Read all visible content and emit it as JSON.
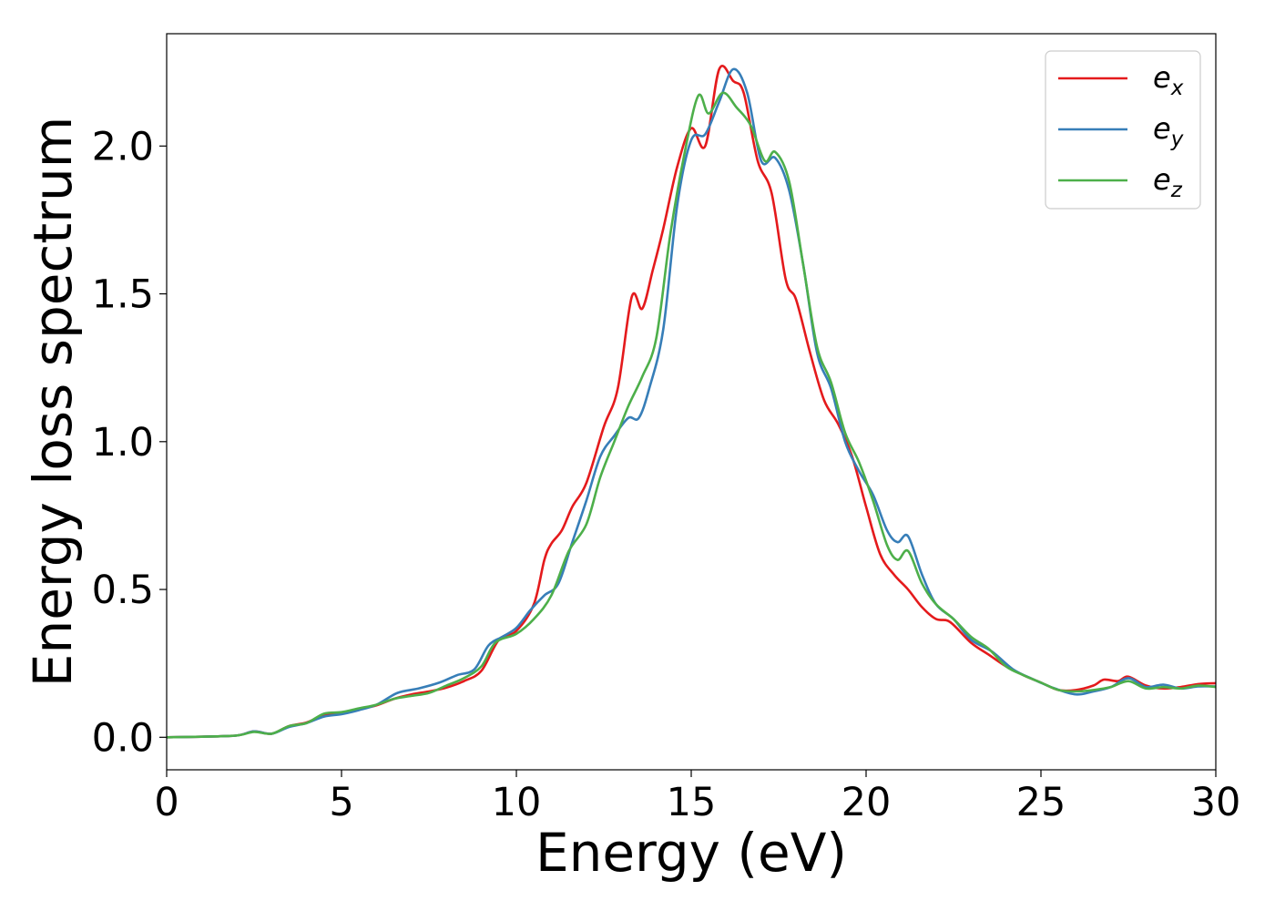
{
  "chart_data": {
    "type": "line",
    "xlabel": "Energy (eV)",
    "ylabel": "Energy loss spectrum",
    "xlim": [
      0,
      30
    ],
    "ylim": [
      -0.11,
      2.38
    ],
    "grid": false,
    "legend_position": "top-right",
    "x_ticks": [
      "0",
      "5",
      "10",
      "15",
      "20",
      "25",
      "30"
    ],
    "y_ticks": [
      "0.0",
      "0.5",
      "1.0",
      "1.5",
      "2.0"
    ],
    "series": [
      {
        "name": "e",
        "subscript": "x",
        "color": "#e41a1c",
        "points": [
          [
            0,
            0
          ],
          [
            1,
            0.002
          ],
          [
            2,
            0.006
          ],
          [
            2.5,
            0.02
          ],
          [
            3,
            0.012
          ],
          [
            3.5,
            0.038
          ],
          [
            4,
            0.05
          ],
          [
            4.5,
            0.075
          ],
          [
            5,
            0.083
          ],
          [
            5.5,
            0.095
          ],
          [
            6,
            0.108
          ],
          [
            6.5,
            0.13
          ],
          [
            7,
            0.145
          ],
          [
            7.5,
            0.155
          ],
          [
            8,
            0.168
          ],
          [
            8.5,
            0.19
          ],
          [
            9,
            0.225
          ],
          [
            9.5,
            0.33
          ],
          [
            10,
            0.36
          ],
          [
            10.5,
            0.45
          ],
          [
            10.8,
            0.6
          ],
          [
            11,
            0.655
          ],
          [
            11.3,
            0.7
          ],
          [
            11.6,
            0.78
          ],
          [
            12,
            0.86
          ],
          [
            12.5,
            1.05
          ],
          [
            12.9,
            1.18
          ],
          [
            13.3,
            1.49
          ],
          [
            13.6,
            1.45
          ],
          [
            13.9,
            1.58
          ],
          [
            14.2,
            1.72
          ],
          [
            14.6,
            1.93
          ],
          [
            15,
            2.06
          ],
          [
            15.4,
            2.0
          ],
          [
            15.8,
            2.26
          ],
          [
            16.2,
            2.22
          ],
          [
            16.5,
            2.18
          ],
          [
            16.9,
            1.95
          ],
          [
            17.3,
            1.84
          ],
          [
            17.7,
            1.55
          ],
          [
            18,
            1.48
          ],
          [
            18.4,
            1.3
          ],
          [
            18.8,
            1.14
          ],
          [
            19.2,
            1.06
          ],
          [
            19.6,
            0.95
          ],
          [
            20,
            0.78
          ],
          [
            20.4,
            0.62
          ],
          [
            20.8,
            0.55
          ],
          [
            21.2,
            0.5
          ],
          [
            21.6,
            0.44
          ],
          [
            22,
            0.4
          ],
          [
            22.4,
            0.39
          ],
          [
            23,
            0.32
          ],
          [
            23.5,
            0.28
          ],
          [
            24,
            0.24
          ],
          [
            24.5,
            0.21
          ],
          [
            25,
            0.185
          ],
          [
            25.5,
            0.16
          ],
          [
            26,
            0.16
          ],
          [
            26.5,
            0.175
          ],
          [
            26.8,
            0.195
          ],
          [
            27.2,
            0.19
          ],
          [
            27.5,
            0.205
          ],
          [
            28,
            0.175
          ],
          [
            28.5,
            0.165
          ],
          [
            29,
            0.17
          ],
          [
            29.5,
            0.18
          ],
          [
            30,
            0.183
          ]
        ]
      },
      {
        "name": "e",
        "subscript": "y",
        "color": "#377eb8",
        "points": [
          [
            0,
            0
          ],
          [
            1,
            0.002
          ],
          [
            2,
            0.006
          ],
          [
            2.5,
            0.02
          ],
          [
            3,
            0.012
          ],
          [
            3.5,
            0.035
          ],
          [
            4,
            0.048
          ],
          [
            4.5,
            0.07
          ],
          [
            5,
            0.078
          ],
          [
            5.5,
            0.092
          ],
          [
            6,
            0.11
          ],
          [
            6.6,
            0.15
          ],
          [
            7.2,
            0.165
          ],
          [
            7.8,
            0.185
          ],
          [
            8.3,
            0.21
          ],
          [
            8.8,
            0.23
          ],
          [
            9.2,
            0.31
          ],
          [
            9.6,
            0.34
          ],
          [
            10,
            0.37
          ],
          [
            10.4,
            0.43
          ],
          [
            10.8,
            0.48
          ],
          [
            11.2,
            0.52
          ],
          [
            11.6,
            0.66
          ],
          [
            12,
            0.8
          ],
          [
            12.4,
            0.95
          ],
          [
            12.8,
            1.02
          ],
          [
            13.2,
            1.08
          ],
          [
            13.5,
            1.08
          ],
          [
            13.8,
            1.18
          ],
          [
            14.2,
            1.38
          ],
          [
            14.6,
            1.8
          ],
          [
            15,
            2.02
          ],
          [
            15.4,
            2.04
          ],
          [
            15.8,
            2.15
          ],
          [
            16.2,
            2.26
          ],
          [
            16.6,
            2.18
          ],
          [
            17,
            1.95
          ],
          [
            17.4,
            1.96
          ],
          [
            17.8,
            1.85
          ],
          [
            18.2,
            1.6
          ],
          [
            18.6,
            1.3
          ],
          [
            19,
            1.18
          ],
          [
            19.4,
            1.0
          ],
          [
            19.8,
            0.9
          ],
          [
            20.2,
            0.82
          ],
          [
            20.6,
            0.7
          ],
          [
            20.9,
            0.66
          ],
          [
            21.2,
            0.68
          ],
          [
            21.6,
            0.55
          ],
          [
            22,
            0.45
          ],
          [
            22.5,
            0.4
          ],
          [
            23,
            0.33
          ],
          [
            23.6,
            0.29
          ],
          [
            24.2,
            0.23
          ],
          [
            24.8,
            0.195
          ],
          [
            25.4,
            0.165
          ],
          [
            26,
            0.145
          ],
          [
            26.5,
            0.155
          ],
          [
            27,
            0.17
          ],
          [
            27.5,
            0.2
          ],
          [
            28,
            0.17
          ],
          [
            28.5,
            0.178
          ],
          [
            29,
            0.165
          ],
          [
            29.5,
            0.172
          ],
          [
            30,
            0.172
          ]
        ]
      },
      {
        "name": "e",
        "subscript": "z",
        "color": "#4daf4a",
        "points": [
          [
            0,
            0
          ],
          [
            1,
            0.002
          ],
          [
            2,
            0.006
          ],
          [
            2.5,
            0.018
          ],
          [
            3,
            0.012
          ],
          [
            3.5,
            0.038
          ],
          [
            4,
            0.048
          ],
          [
            4.5,
            0.08
          ],
          [
            5,
            0.085
          ],
          [
            5.5,
            0.098
          ],
          [
            6,
            0.11
          ],
          [
            6.5,
            0.13
          ],
          [
            7,
            0.14
          ],
          [
            7.5,
            0.15
          ],
          [
            8,
            0.175
          ],
          [
            8.5,
            0.2
          ],
          [
            9,
            0.24
          ],
          [
            9.4,
            0.32
          ],
          [
            10,
            0.35
          ],
          [
            10.5,
            0.4
          ],
          [
            11,
            0.48
          ],
          [
            11.5,
            0.63
          ],
          [
            12,
            0.72
          ],
          [
            12.4,
            0.88
          ],
          [
            12.8,
            1.0
          ],
          [
            13.2,
            1.12
          ],
          [
            13.6,
            1.22
          ],
          [
            14,
            1.35
          ],
          [
            14.4,
            1.7
          ],
          [
            14.8,
            1.97
          ],
          [
            15.2,
            2.17
          ],
          [
            15.5,
            2.11
          ],
          [
            15.9,
            2.18
          ],
          [
            16.3,
            2.13
          ],
          [
            16.7,
            2.07
          ],
          [
            17.1,
            1.95
          ],
          [
            17.4,
            1.98
          ],
          [
            17.8,
            1.88
          ],
          [
            18.2,
            1.6
          ],
          [
            18.6,
            1.32
          ],
          [
            19,
            1.2
          ],
          [
            19.4,
            1.03
          ],
          [
            19.8,
            0.93
          ],
          [
            20.2,
            0.8
          ],
          [
            20.6,
            0.65
          ],
          [
            20.9,
            0.6
          ],
          [
            21.2,
            0.63
          ],
          [
            21.6,
            0.52
          ],
          [
            22,
            0.45
          ],
          [
            22.5,
            0.4
          ],
          [
            23,
            0.34
          ],
          [
            23.5,
            0.3
          ],
          [
            24,
            0.24
          ],
          [
            24.5,
            0.21
          ],
          [
            25,
            0.185
          ],
          [
            25.5,
            0.16
          ],
          [
            26,
            0.155
          ],
          [
            26.5,
            0.16
          ],
          [
            27,
            0.17
          ],
          [
            27.5,
            0.19
          ],
          [
            28,
            0.165
          ],
          [
            28.5,
            0.17
          ],
          [
            29,
            0.165
          ],
          [
            29.5,
            0.175
          ],
          [
            30,
            0.17
          ]
        ]
      }
    ]
  }
}
